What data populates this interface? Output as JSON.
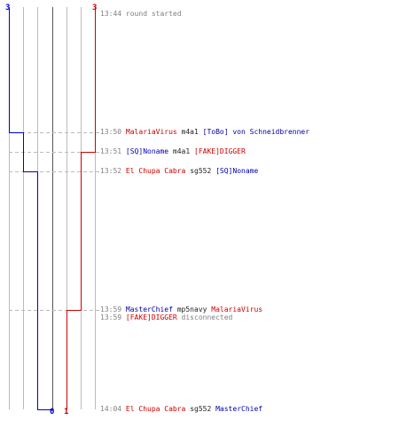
{
  "colors": {
    "team_blue": "#0000cc",
    "team_red": "#cc0000",
    "time_gray": "#808080",
    "grid": "#bbbbbb",
    "center_line": "#555555",
    "dashed_guide": "#bbbbbb"
  },
  "scores": {
    "blue_start": "3",
    "red_start": "3",
    "blue_end": "0",
    "red_end": "1"
  },
  "events": [
    {
      "time": "13:44",
      "parts": [
        {
          "text": "round started",
          "color": "gray"
        }
      ]
    },
    {
      "time": "13:50",
      "parts": [
        {
          "text": "MalariaVirus",
          "color": "red"
        },
        {
          "text": "m4a1",
          "color": "dark"
        },
        {
          "text": "[ToBo] von Schneidbrenner",
          "color": "blue"
        }
      ]
    },
    {
      "time": "13:51",
      "parts": [
        {
          "text": "[SQ]Noname",
          "color": "blue"
        },
        {
          "text": "m4a1",
          "color": "dark"
        },
        {
          "text": "[FAKE]DIGGER",
          "color": "red"
        }
      ]
    },
    {
      "time": "13:52",
      "parts": [
        {
          "text": "El Chupa Cabra",
          "color": "red"
        },
        {
          "text": "sg552",
          "color": "dark"
        },
        {
          "text": "[SQ]Noname",
          "color": "blue"
        }
      ]
    },
    {
      "time": "13:59",
      "parts": [
        {
          "text": "MasterChief",
          "color": "blue"
        },
        {
          "text": "mp5navy",
          "color": "dark"
        },
        {
          "text": "MalariaVirus",
          "color": "red"
        }
      ]
    },
    {
      "time": "13:59",
      "parts": [
        {
          "text": "[FAKE]DIGGER",
          "color": "red"
        },
        {
          "text": "disconnected",
          "color": "gray"
        }
      ]
    },
    {
      "time": "14:04",
      "parts": [
        {
          "text": "El Chupa Cabra",
          "color": "red"
        },
        {
          "text": "sg552",
          "color": "dark"
        },
        {
          "text": "MasterChief",
          "color": "blue"
        }
      ]
    }
  ]
}
